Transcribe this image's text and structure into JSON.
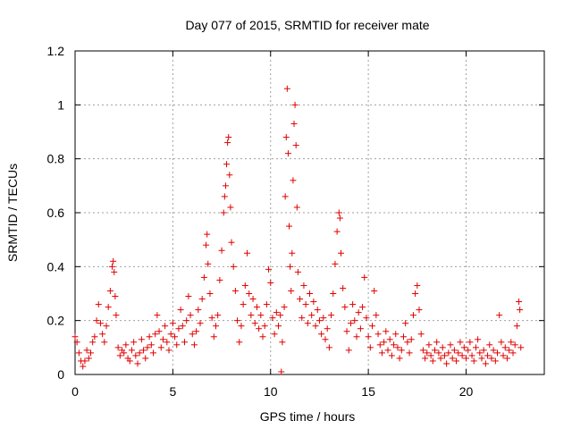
{
  "chart_data": {
    "type": "scatter",
    "title": "Day 077 of 2015, SRMTID for receiver mate",
    "xlabel": "GPS time / hours",
    "ylabel": "SRMTID / TECUs",
    "xlim": [
      0,
      24
    ],
    "ylim": [
      0,
      1.2
    ],
    "xticks": [
      0,
      5,
      10,
      15,
      20
    ],
    "xtick_labels": [
      "0",
      "5",
      "10",
      "15",
      "20"
    ],
    "yticks": [
      0,
      0.2,
      0.4,
      0.6,
      0.8,
      1.0,
      1.2
    ],
    "ytick_labels": [
      "0",
      "0.2",
      "0.4",
      "0.6",
      "0.8",
      "1",
      "1.2"
    ],
    "grid": true,
    "marker": "plus",
    "color": "#e00000",
    "series": [
      {
        "name": "SRMTID",
        "points": [
          [
            0.0,
            0.14
          ],
          [
            0.1,
            0.12
          ],
          [
            0.2,
            0.08
          ],
          [
            0.3,
            0.05
          ],
          [
            0.4,
            0.03
          ],
          [
            0.5,
            0.05
          ],
          [
            0.6,
            0.09
          ],
          [
            0.7,
            0.06
          ],
          [
            0.8,
            0.08
          ],
          [
            0.9,
            0.12
          ],
          [
            1.0,
            0.14
          ],
          [
            1.1,
            0.2
          ],
          [
            1.2,
            0.26
          ],
          [
            1.3,
            0.19
          ],
          [
            1.4,
            0.15
          ],
          [
            1.5,
            0.12
          ],
          [
            1.6,
            0.18
          ],
          [
            1.7,
            0.25
          ],
          [
            1.8,
            0.31
          ],
          [
            1.9,
            0.4
          ],
          [
            1.95,
            0.42
          ],
          [
            2.0,
            0.38
          ],
          [
            2.05,
            0.29
          ],
          [
            2.1,
            0.22
          ],
          [
            2.2,
            0.1
          ],
          [
            2.3,
            0.07
          ],
          [
            2.4,
            0.09
          ],
          [
            2.5,
            0.08
          ],
          [
            2.6,
            0.11
          ],
          [
            2.7,
            0.06
          ],
          [
            2.8,
            0.05
          ],
          [
            2.9,
            0.09
          ],
          [
            3.0,
            0.12
          ],
          [
            3.1,
            0.07
          ],
          [
            3.2,
            0.04
          ],
          [
            3.3,
            0.08
          ],
          [
            3.4,
            0.13
          ],
          [
            3.5,
            0.09
          ],
          [
            3.6,
            0.06
          ],
          [
            3.7,
            0.1
          ],
          [
            3.8,
            0.14
          ],
          [
            3.9,
            0.11
          ],
          [
            4.0,
            0.08
          ],
          [
            4.1,
            0.15
          ],
          [
            4.2,
            0.22
          ],
          [
            4.3,
            0.16
          ],
          [
            4.4,
            0.1
          ],
          [
            4.5,
            0.13
          ],
          [
            4.6,
            0.18
          ],
          [
            4.7,
            0.12
          ],
          [
            4.8,
            0.09
          ],
          [
            4.9,
            0.15
          ],
          [
            5.0,
            0.19
          ],
          [
            5.1,
            0.14
          ],
          [
            5.2,
            0.11
          ],
          [
            5.3,
            0.17
          ],
          [
            5.4,
            0.24
          ],
          [
            5.5,
            0.18
          ],
          [
            5.6,
            0.12
          ],
          [
            5.7,
            0.2
          ],
          [
            5.8,
            0.29
          ],
          [
            5.9,
            0.22
          ],
          [
            6.0,
            0.15
          ],
          [
            6.1,
            0.11
          ],
          [
            6.2,
            0.16
          ],
          [
            6.3,
            0.24
          ],
          [
            6.4,
            0.19
          ],
          [
            6.5,
            0.28
          ],
          [
            6.6,
            0.36
          ],
          [
            6.7,
            0.48
          ],
          [
            6.75,
            0.52
          ],
          [
            6.8,
            0.41
          ],
          [
            6.9,
            0.3
          ],
          [
            7.0,
            0.21
          ],
          [
            7.1,
            0.14
          ],
          [
            7.2,
            0.18
          ],
          [
            7.3,
            0.22
          ],
          [
            7.4,
            0.35
          ],
          [
            7.5,
            0.46
          ],
          [
            7.6,
            0.6
          ],
          [
            7.65,
            0.66
          ],
          [
            7.7,
            0.7
          ],
          [
            7.75,
            0.78
          ],
          [
            7.8,
            0.86
          ],
          [
            7.85,
            0.88
          ],
          [
            7.9,
            0.74
          ],
          [
            7.95,
            0.62
          ],
          [
            8.0,
            0.49
          ],
          [
            8.1,
            0.4
          ],
          [
            8.2,
            0.31
          ],
          [
            8.3,
            0.2
          ],
          [
            8.4,
            0.12
          ],
          [
            8.5,
            0.18
          ],
          [
            8.6,
            0.26
          ],
          [
            8.7,
            0.33
          ],
          [
            8.8,
            0.45
          ],
          [
            8.9,
            0.3
          ],
          [
            9.0,
            0.22
          ],
          [
            9.1,
            0.28
          ],
          [
            9.2,
            0.19
          ],
          [
            9.3,
            0.25
          ],
          [
            9.4,
            0.17
          ],
          [
            9.5,
            0.22
          ],
          [
            9.6,
            0.14
          ],
          [
            9.7,
            0.18
          ],
          [
            9.8,
            0.26
          ],
          [
            9.9,
            0.39
          ],
          [
            10.0,
            0.34
          ],
          [
            10.1,
            0.21
          ],
          [
            10.2,
            0.15
          ],
          [
            10.3,
            0.23
          ],
          [
            10.4,
            0.18
          ],
          [
            10.5,
            0.22
          ],
          [
            10.55,
            0.01
          ],
          [
            10.6,
            0.12
          ],
          [
            10.7,
            0.25
          ],
          [
            10.75,
            0.66
          ],
          [
            10.8,
            0.88
          ],
          [
            10.85,
            1.06
          ],
          [
            10.9,
            0.82
          ],
          [
            10.95,
            0.55
          ],
          [
            11.0,
            0.4
          ],
          [
            11.05,
            0.31
          ],
          [
            11.1,
            0.45
          ],
          [
            11.15,
            0.72
          ],
          [
            11.2,
            0.93
          ],
          [
            11.25,
            1.0
          ],
          [
            11.3,
            0.85
          ],
          [
            11.35,
            0.62
          ],
          [
            11.4,
            0.38
          ],
          [
            11.5,
            0.28
          ],
          [
            11.6,
            0.21
          ],
          [
            11.7,
            0.33
          ],
          [
            11.8,
            0.26
          ],
          [
            11.9,
            0.19
          ],
          [
            12.0,
            0.3
          ],
          [
            12.1,
            0.22
          ],
          [
            12.2,
            0.27
          ],
          [
            12.3,
            0.18
          ],
          [
            12.4,
            0.24
          ],
          [
            12.5,
            0.2
          ],
          [
            12.6,
            0.15
          ],
          [
            12.7,
            0.21
          ],
          [
            12.8,
            0.13
          ],
          [
            12.9,
            0.17
          ],
          [
            13.0,
            0.1
          ],
          [
            13.1,
            0.22
          ],
          [
            13.2,
            0.3
          ],
          [
            13.3,
            0.41
          ],
          [
            13.4,
            0.53
          ],
          [
            13.5,
            0.6
          ],
          [
            13.55,
            0.58
          ],
          [
            13.6,
            0.45
          ],
          [
            13.7,
            0.32
          ],
          [
            13.8,
            0.25
          ],
          [
            13.9,
            0.16
          ],
          [
            14.0,
            0.09
          ],
          [
            14.1,
            0.19
          ],
          [
            14.2,
            0.26
          ],
          [
            14.3,
            0.2
          ],
          [
            14.4,
            0.14
          ],
          [
            14.5,
            0.23
          ],
          [
            14.6,
            0.17
          ],
          [
            14.7,
            0.25
          ],
          [
            14.8,
            0.36
          ],
          [
            14.9,
            0.21
          ],
          [
            15.0,
            0.14
          ],
          [
            15.1,
            0.1
          ],
          [
            15.2,
            0.18
          ],
          [
            15.3,
            0.31
          ],
          [
            15.4,
            0.22
          ],
          [
            15.5,
            0.15
          ],
          [
            15.6,
            0.11
          ],
          [
            15.7,
            0.08
          ],
          [
            15.8,
            0.12
          ],
          [
            15.9,
            0.16
          ],
          [
            16.0,
            0.09
          ],
          [
            16.1,
            0.13
          ],
          [
            16.2,
            0.07
          ],
          [
            16.3,
            0.11
          ],
          [
            16.4,
            0.15
          ],
          [
            16.5,
            0.1
          ],
          [
            16.6,
            0.06
          ],
          [
            16.7,
            0.09
          ],
          [
            16.8,
            0.14
          ],
          [
            16.9,
            0.19
          ],
          [
            17.0,
            0.12
          ],
          [
            17.1,
            0.08
          ],
          [
            17.2,
            0.13
          ],
          [
            17.3,
            0.22
          ],
          [
            17.4,
            0.3
          ],
          [
            17.5,
            0.33
          ],
          [
            17.6,
            0.24
          ],
          [
            17.7,
            0.15
          ],
          [
            17.8,
            0.09
          ],
          [
            17.9,
            0.06
          ],
          [
            18.0,
            0.08
          ],
          [
            18.1,
            0.11
          ],
          [
            18.2,
            0.07
          ],
          [
            18.3,
            0.05
          ],
          [
            18.4,
            0.09
          ],
          [
            18.5,
            0.12
          ],
          [
            18.6,
            0.08
          ],
          [
            18.7,
            0.06
          ],
          [
            18.8,
            0.1
          ],
          [
            18.9,
            0.07
          ],
          [
            19.0,
            0.04
          ],
          [
            19.1,
            0.08
          ],
          [
            19.2,
            0.11
          ],
          [
            19.3,
            0.06
          ],
          [
            19.4,
            0.09
          ],
          [
            19.5,
            0.05
          ],
          [
            19.6,
            0.08
          ],
          [
            19.7,
            0.12
          ],
          [
            19.8,
            0.07
          ],
          [
            19.9,
            0.1
          ],
          [
            20.0,
            0.06
          ],
          [
            20.1,
            0.09
          ],
          [
            20.2,
            0.12
          ],
          [
            20.3,
            0.07
          ],
          [
            20.4,
            0.05
          ],
          [
            20.5,
            0.1
          ],
          [
            20.6,
            0.13
          ],
          [
            20.7,
            0.08
          ],
          [
            20.8,
            0.06
          ],
          [
            20.9,
            0.09
          ],
          [
            21.0,
            0.04
          ],
          [
            21.1,
            0.07
          ],
          [
            21.2,
            0.11
          ],
          [
            21.3,
            0.06
          ],
          [
            21.4,
            0.09
          ],
          [
            21.5,
            0.05
          ],
          [
            21.6,
            0.08
          ],
          [
            21.7,
            0.22
          ],
          [
            21.8,
            0.12
          ],
          [
            21.9,
            0.07
          ],
          [
            22.0,
            0.1
          ],
          [
            22.1,
            0.06
          ],
          [
            22.2,
            0.09
          ],
          [
            22.3,
            0.12
          ],
          [
            22.4,
            0.08
          ],
          [
            22.5,
            0.11
          ],
          [
            22.6,
            0.18
          ],
          [
            22.7,
            0.27
          ],
          [
            22.75,
            0.24
          ],
          [
            22.8,
            0.1
          ]
        ]
      }
    ]
  }
}
